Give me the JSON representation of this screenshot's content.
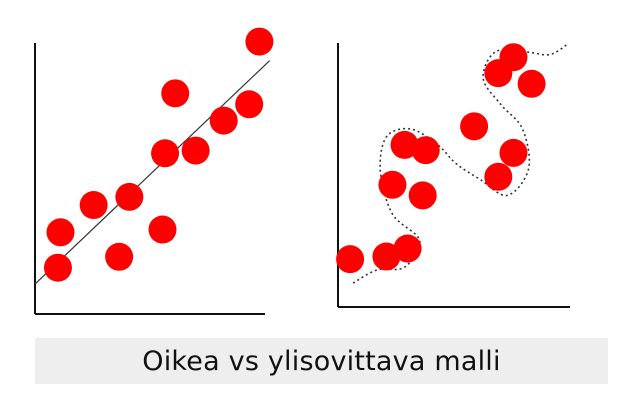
{
  "caption": "Oikea vs ylisovittava malli",
  "colors": {
    "dot": "#ff0000",
    "axis": "#111111",
    "line": "#333333",
    "caption_bg": "#eeeeee"
  },
  "chart_data": [
    {
      "type": "scatter",
      "fit": "linear",
      "points": [
        {
          "x": 1.0,
          "y": 3.0
        },
        {
          "x": 0.9,
          "y": 1.7
        },
        {
          "x": 2.3,
          "y": 4.0
        },
        {
          "x": 3.3,
          "y": 2.1
        },
        {
          "x": 3.7,
          "y": 4.3
        },
        {
          "x": 5.0,
          "y": 3.1
        },
        {
          "x": 5.1,
          "y": 5.9
        },
        {
          "x": 5.5,
          "y": 8.1
        },
        {
          "x": 6.3,
          "y": 6.0
        },
        {
          "x": 7.4,
          "y": 7.1
        },
        {
          "x": 8.4,
          "y": 7.7
        },
        {
          "x": 8.8,
          "y": 10.0
        }
      ],
      "line": {
        "x0": 0.0,
        "y0": 1.1,
        "x1": 9.2,
        "y1": 9.3
      },
      "xlim": [
        0,
        10
      ],
      "ylim": [
        0,
        10.5
      ]
    },
    {
      "type": "scatter",
      "fit": "overfit-curve",
      "points": [
        {
          "x": 0.4,
          "y": 1.8
        },
        {
          "x": 1.6,
          "y": 1.9
        },
        {
          "x": 2.3,
          "y": 2.2
        },
        {
          "x": 1.8,
          "y": 4.6
        },
        {
          "x": 2.2,
          "y": 6.1
        },
        {
          "x": 2.9,
          "y": 5.9
        },
        {
          "x": 2.8,
          "y": 4.2
        },
        {
          "x": 4.5,
          "y": 6.8
        },
        {
          "x": 5.3,
          "y": 4.9
        },
        {
          "x": 5.8,
          "y": 5.8
        },
        {
          "x": 5.3,
          "y": 8.8
        },
        {
          "x": 5.8,
          "y": 9.4
        },
        {
          "x": 6.4,
          "y": 8.4
        }
      ],
      "curve": [
        {
          "x": 0.5,
          "y": 0.9
        },
        {
          "x": 1.3,
          "y": 1.4
        },
        {
          "x": 2.2,
          "y": 1.5
        },
        {
          "x": 2.7,
          "y": 2.5
        },
        {
          "x": 1.8,
          "y": 3.5
        },
        {
          "x": 1.4,
          "y": 5.1
        },
        {
          "x": 1.6,
          "y": 6.4
        },
        {
          "x": 2.4,
          "y": 6.7
        },
        {
          "x": 3.3,
          "y": 6.1
        },
        {
          "x": 3.9,
          "y": 5.4
        },
        {
          "x": 4.7,
          "y": 4.8
        },
        {
          "x": 5.6,
          "y": 4.2
        },
        {
          "x": 6.3,
          "y": 5.2
        },
        {
          "x": 6.1,
          "y": 6.7
        },
        {
          "x": 5.4,
          "y": 7.6
        },
        {
          "x": 4.8,
          "y": 8.6
        },
        {
          "x": 5.2,
          "y": 9.6
        },
        {
          "x": 6.2,
          "y": 9.6
        },
        {
          "x": 7.0,
          "y": 9.5
        },
        {
          "x": 7.6,
          "y": 9.9
        }
      ],
      "xlim": [
        0,
        8
      ],
      "ylim": [
        0,
        10.5
      ]
    }
  ]
}
